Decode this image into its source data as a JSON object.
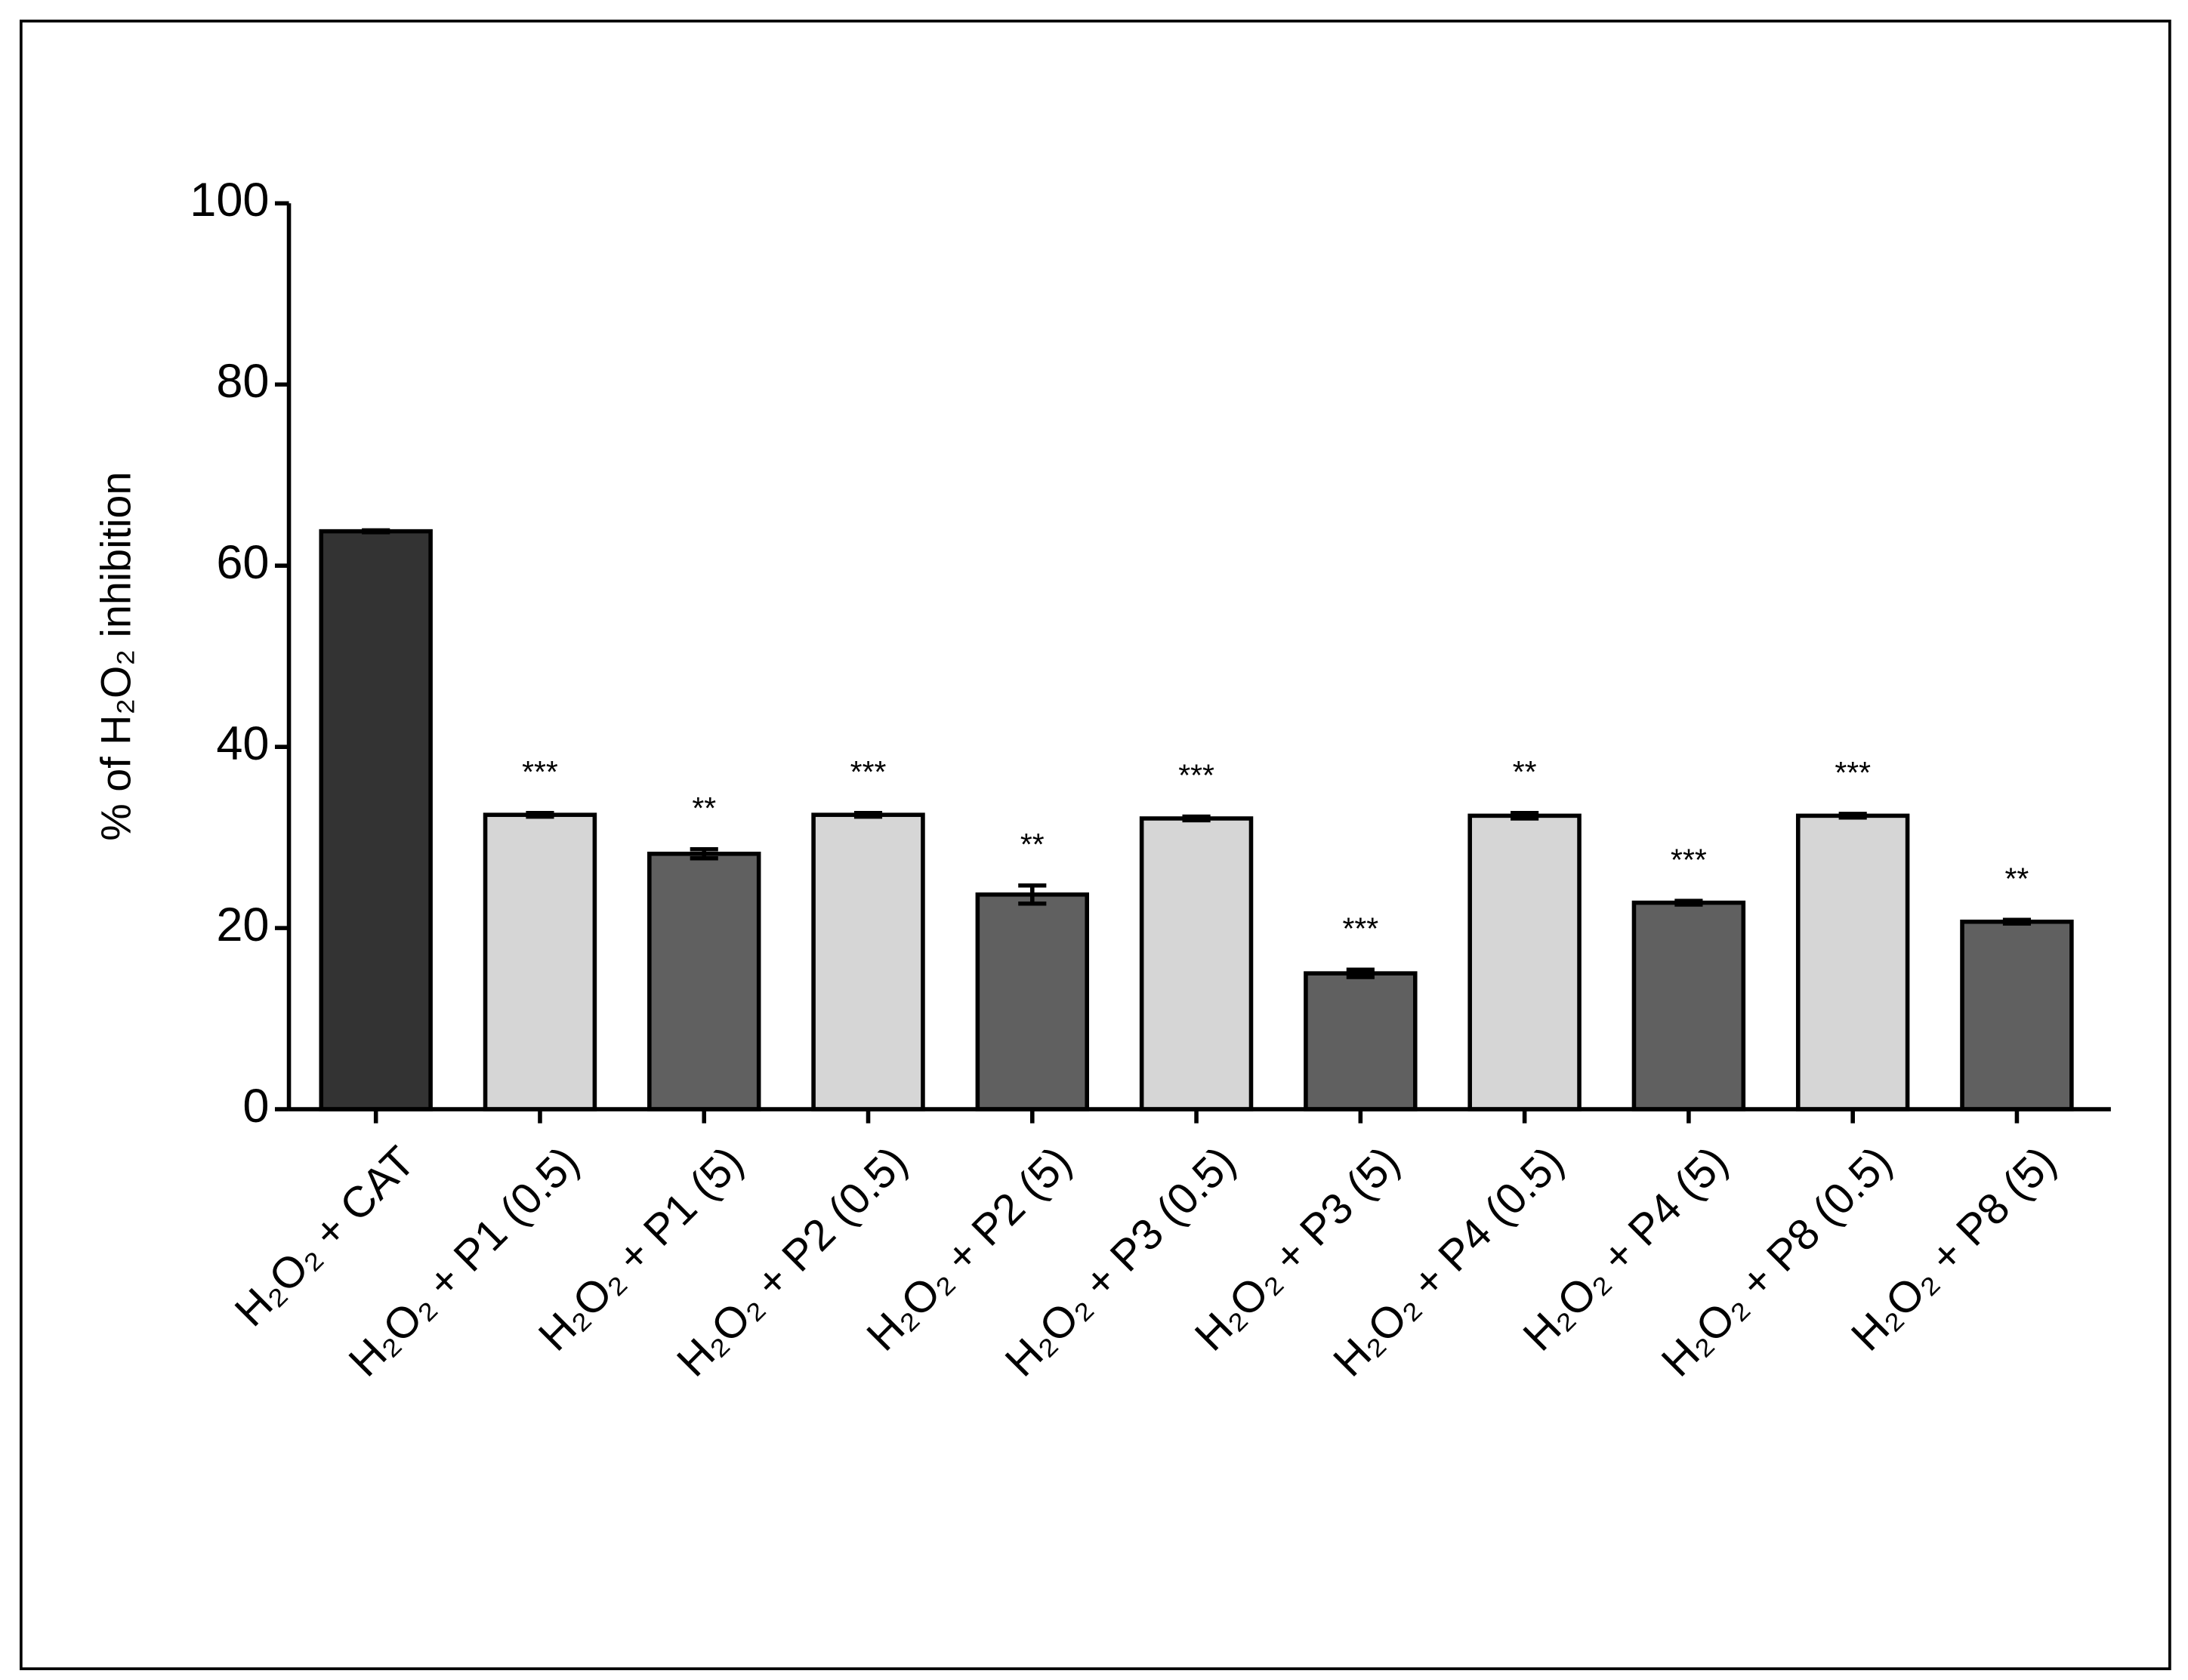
{
  "chart_data": {
    "type": "bar",
    "y_label": "% of H₂O₂ inhibition",
    "categories": [
      "H₂O₂ + CAT",
      "H₂O₂ + P1 (0.5)",
      "H₂O₂ + P1 (5)",
      "H₂O₂ + P2 (0.5)",
      "H₂O₂ + P2 (5)",
      "H₂O₂ + P3 (0.5)",
      "H₂O₂ + P3 (5)",
      "H₂O₂ + P4 (0.5)",
      "H₂O₂ + P4 (5)",
      "H₂O₂ + P8 (0.5)",
      "H₂O₂ + P8 (5)"
    ],
    "values": [
      63.8,
      32.5,
      28.2,
      32.5,
      23.7,
      32.1,
      15.0,
      32.4,
      22.8,
      32.4,
      20.7
    ],
    "errors": [
      0.1,
      0.2,
      0.5,
      0.2,
      1.0,
      0.2,
      0.4,
      0.3,
      0.2,
      0.2,
      0.2
    ],
    "annotations": [
      null,
      "***",
      "**",
      "***",
      "**",
      "***",
      "***",
      "**",
      "***",
      "***",
      "**"
    ],
    "colors": [
      "#333333",
      "#d6d6d6",
      "#606060",
      "#d6d6d6",
      "#606060",
      "#d6d6d6",
      "#606060",
      "#d6d6d6",
      "#606060",
      "#d6d6d6",
      "#606060"
    ],
    "ylim": [
      0,
      100
    ],
    "yticks": [
      0,
      20,
      40,
      60,
      80,
      100
    ],
    "grid": false
  }
}
